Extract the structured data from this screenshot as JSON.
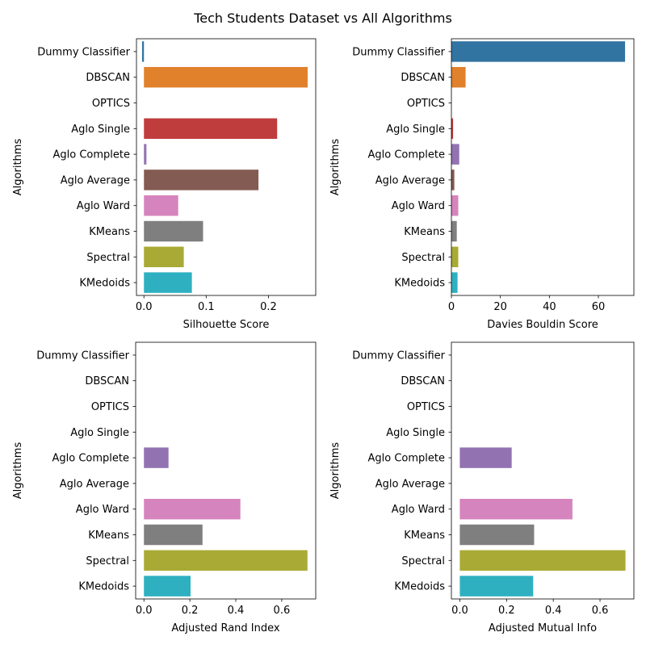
{
  "figure_title": "Tech Students Dataset vs All Algorithms",
  "chart_data": [
    {
      "type": "bar",
      "orientation": "horizontal",
      "categories": [
        "Dummy Classifier",
        "DBSCAN",
        "OPTICS",
        "Aglo Single",
        "Aglo Complete",
        "Aglo Average",
        "Aglo Ward",
        "KMeans",
        "Spectral",
        "KMedoids"
      ],
      "values": [
        -0.003,
        0.263,
        0,
        0.214,
        0.004,
        0.184,
        0.055,
        0.095,
        0.064,
        0.077
      ],
      "xlabel": "Silhouette Score",
      "ylabel": "Algorithms",
      "xlim": [
        -0.012,
        0.276
      ],
      "xticks": [
        0.0,
        0.1,
        0.2
      ],
      "xtick_labels": [
        "0.0",
        "0.1",
        "0.2"
      ],
      "grid": false
    },
    {
      "type": "bar",
      "orientation": "horizontal",
      "categories": [
        "Dummy Classifier",
        "DBSCAN",
        "OPTICS",
        "Aglo Single",
        "Aglo Complete",
        "Aglo Average",
        "Aglo Ward",
        "KMeans",
        "Spectral",
        "KMedoids"
      ],
      "values": [
        70.9,
        5.8,
        0,
        0.7,
        3.2,
        1.2,
        2.8,
        2.2,
        2.8,
        2.5
      ],
      "xlabel": "Davies Bouldin Score",
      "ylabel": "Algorithms",
      "xlim": [
        0,
        74.5
      ],
      "xticks": [
        0,
        20,
        40,
        60
      ],
      "xtick_labels": [
        "0",
        "20",
        "40",
        "60"
      ],
      "grid": false
    },
    {
      "type": "bar",
      "orientation": "horizontal",
      "categories": [
        "Dummy Classifier",
        "DBSCAN",
        "OPTICS",
        "Aglo Single",
        "Aglo Complete",
        "Aglo Average",
        "Aglo Ward",
        "KMeans",
        "Spectral",
        "KMedoids"
      ],
      "values": [
        0,
        0,
        0,
        0,
        0.107,
        0,
        0.42,
        0.255,
        0.712,
        0.203
      ],
      "xlabel": "Adjusted Rand Index",
      "ylabel": "Algorithms",
      "xlim": [
        -0.036,
        0.748
      ],
      "xticks": [
        0.0,
        0.2,
        0.4,
        0.6
      ],
      "xtick_labels": [
        "0.0",
        "0.2",
        "0.4",
        "0.6"
      ],
      "grid": false
    },
    {
      "type": "bar",
      "orientation": "horizontal",
      "categories": [
        "Dummy Classifier",
        "DBSCAN",
        "OPTICS",
        "Aglo Single",
        "Aglo Complete",
        "Aglo Average",
        "Aglo Ward",
        "KMeans",
        "Spectral",
        "KMedoids"
      ],
      "values": [
        0,
        0,
        0,
        0,
        0.222,
        0,
        0.482,
        0.318,
        0.709,
        0.314
      ],
      "xlabel": "Adjusted Mutual Info",
      "ylabel": "Algorithms",
      "xlim": [
        -0.036,
        0.745
      ],
      "xticks": [
        0.0,
        0.2,
        0.4,
        0.6
      ],
      "xtick_labels": [
        "0.0",
        "0.2",
        "0.4",
        "0.6"
      ],
      "grid": false
    }
  ],
  "colors": [
    "#3274a1",
    "#e1812c",
    "#3a923a",
    "#c03d3e",
    "#9372b2",
    "#845b53",
    "#d684bd",
    "#7f7f7f",
    "#a9aa35",
    "#2eb0c1"
  ]
}
